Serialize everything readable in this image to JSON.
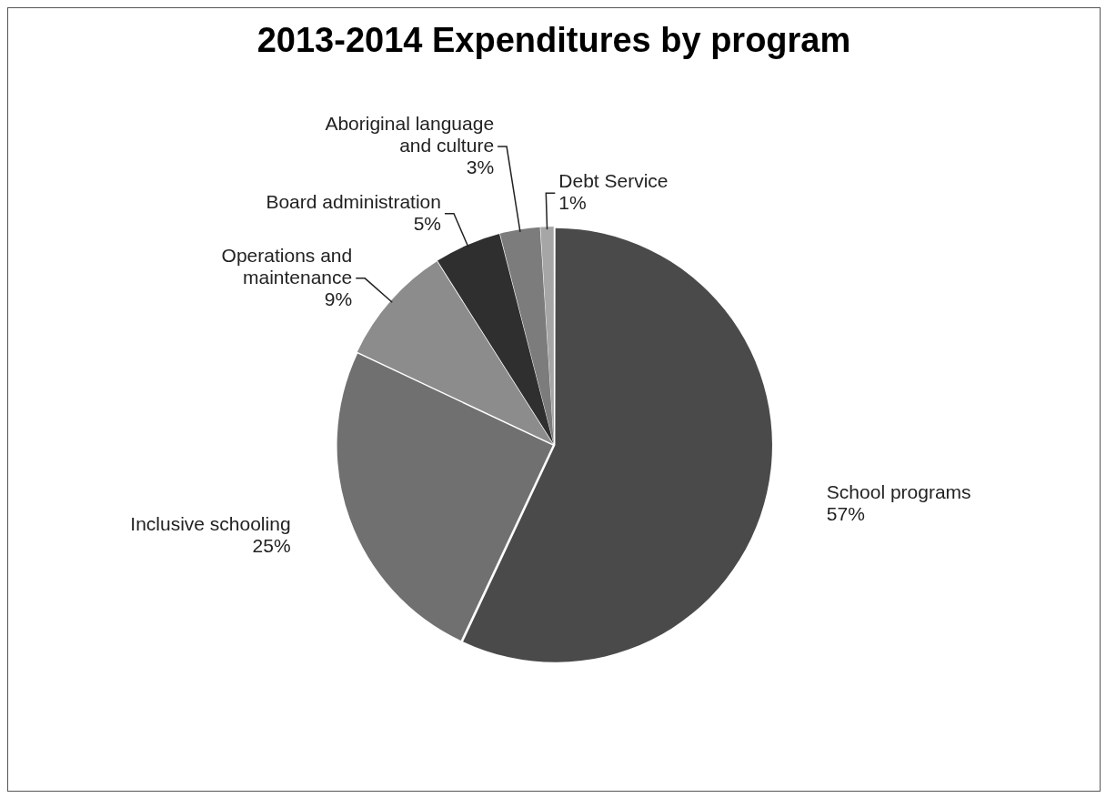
{
  "chart_data": {
    "type": "pie",
    "title": "2013-2014 Expenditures by program",
    "categories": [
      "School programs",
      "Inclusive schooling",
      "Operations and maintenance",
      "Board administration",
      "Aboriginal language and culture",
      "Debt Service"
    ],
    "values": [
      57,
      25,
      9,
      5,
      3,
      1
    ],
    "value_labels": [
      "57%",
      "25%",
      "9%",
      "5%",
      "3%",
      "1%"
    ],
    "colors": [
      "#4a4a4a",
      "#707070",
      "#8c8c8c",
      "#2f2f2f",
      "#7c7c7c",
      "#a6a6a6"
    ],
    "legend": false
  }
}
